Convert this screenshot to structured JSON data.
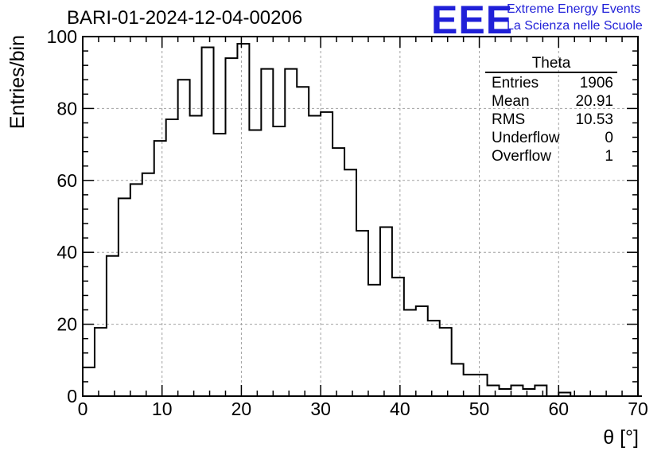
{
  "header": {
    "title": "BARI-01-2024-12-04-00206",
    "logo_letters": "EEE",
    "logo_line1": "Extreme Energy Events",
    "logo_line2": "La Scienza nelle Scuole",
    "logo_color": "#1f1fd8"
  },
  "stats": {
    "title": "Theta",
    "rows": [
      {
        "label": "Entries",
        "value": "1906"
      },
      {
        "label": "Mean",
        "value": "20.91"
      },
      {
        "label": "RMS",
        "value": "10.53"
      },
      {
        "label": "Underflow",
        "value": "0"
      },
      {
        "label": "Overflow",
        "value": "1"
      }
    ]
  },
  "chart_data": {
    "type": "bar",
    "title": "BARI-01-2024-12-04-00206",
    "xlabel": "θ [°]",
    "ylabel": "Entries/bin",
    "xlim": [
      0,
      70
    ],
    "ylim": [
      0,
      100
    ],
    "xticks": [
      0,
      10,
      20,
      30,
      40,
      50,
      60,
      70
    ],
    "yticks": [
      0,
      20,
      40,
      60,
      80,
      100
    ],
    "grid": true,
    "bin_width": 1.5,
    "bin_edges_start": 0,
    "values": [
      8,
      19,
      39,
      55,
      59,
      62,
      71,
      77,
      88,
      78,
      97,
      73,
      94,
      98,
      74,
      91,
      75,
      91,
      86,
      78,
      79,
      69,
      63,
      46,
      31,
      47,
      33,
      24,
      25,
      21,
      19,
      9,
      6,
      6,
      3,
      2,
      3,
      2,
      3,
      0,
      1,
      0,
      0,
      0,
      0,
      0,
      0
    ],
    "line_color": "#000000",
    "grid_color": "#a0a0a0"
  }
}
